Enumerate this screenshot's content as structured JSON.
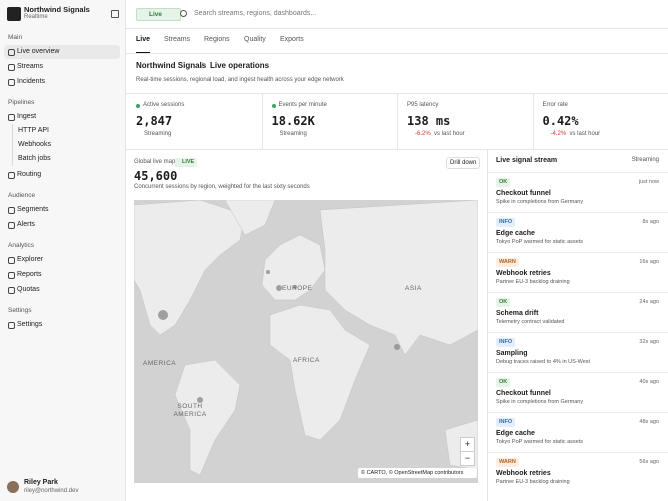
{
  "sidebar": {
    "brand": {
      "name": "Northwind Signals",
      "subtitle": "Realtime"
    },
    "sections": [
      {
        "title": "Main",
        "items": [
          {
            "label": "Live overview"
          },
          {
            "label": "Streams"
          },
          {
            "label": "Incidents"
          }
        ]
      },
      {
        "title": "Pipelines",
        "items": [
          {
            "label": "Ingest",
            "children": [
              "HTTP API",
              "Webhooks",
              "Batch jobs"
            ]
          },
          {
            "label": "Routing"
          }
        ]
      },
      {
        "title": "Audience",
        "items": [
          {
            "label": "Segments"
          },
          {
            "label": "Alerts"
          }
        ]
      },
      {
        "title": "Analytics",
        "items": [
          {
            "label": "Explorer"
          },
          {
            "label": "Reports"
          },
          {
            "label": "Quotas"
          }
        ]
      },
      {
        "title": "Settings",
        "items": [
          {
            "label": "Settings"
          }
        ]
      }
    ],
    "user": {
      "name": "Riley Park",
      "email": "riley@northwind.dev"
    }
  },
  "topbar": {
    "status": "Live",
    "search": "Search streams, regions, dashboards..."
  },
  "tabs": [
    "Live",
    "Streams",
    "Regions",
    "Quality",
    "Exports"
  ],
  "header": {
    "breadcrumb": [
      "Northwind Signals",
      "Live operations"
    ],
    "separator": "/",
    "description": "Real-time sessions, regional load, and ingest health across your edge network"
  },
  "kpis": [
    {
      "label": "Active sessions",
      "value": "2,847",
      "status": "Streaming"
    },
    {
      "label": "Events per minute",
      "value": "18.62K",
      "status": "Streaming"
    },
    {
      "label": "P95 latency",
      "value": "138 ms",
      "change": "-6.2%",
      "note": "vs last hour"
    },
    {
      "label": "Error rate",
      "value": "0.42%",
      "change": "-4.2%",
      "note": "vs last hour"
    }
  ],
  "map": {
    "title": "Global live map",
    "badge": "LIVE",
    "action": "Drill down",
    "value": "45,600",
    "caption": "Concurrent sessions by region, weighted for the last sixty seconds",
    "labels": [
      "EUROPE",
      "ASIA",
      "AFRICA",
      "AMERICA",
      "SOUTH AMERICA"
    ],
    "zoom": [
      "+",
      "−"
    ],
    "attribution": "© CARTO, © OpenStreetMap contributors"
  },
  "stream": {
    "title": "Live signal stream",
    "status": "Streaming",
    "events": [
      {
        "level": "OK",
        "title": "Checkout funnel",
        "detail": "Spike in completions from Germany",
        "time": "just now"
      },
      {
        "level": "INFO",
        "title": "Edge cache",
        "detail": "Tokyo PoP warmed for static assets",
        "time": "8s ago"
      },
      {
        "level": "WARN",
        "title": "Webhook retries",
        "detail": "Partner EU-3 backlog draining",
        "time": "16s ago"
      },
      {
        "level": "OK",
        "title": "Schema drift",
        "detail": "Telemetry contract validated",
        "time": "24s ago"
      },
      {
        "level": "INFO",
        "title": "Sampling",
        "detail": "Debug traces raised to 4% in US-West",
        "time": "32s ago"
      },
      {
        "level": "OK",
        "title": "Checkout funnel",
        "detail": "Spike in completions from Germany",
        "time": "40s ago"
      },
      {
        "level": "INFO",
        "title": "Edge cache",
        "detail": "Tokyo PoP warmed for static assets",
        "time": "48s ago"
      },
      {
        "level": "WARN",
        "title": "Webhook retries",
        "detail": "Partner EU-3 backlog draining",
        "time": "56s ago"
      }
    ]
  }
}
